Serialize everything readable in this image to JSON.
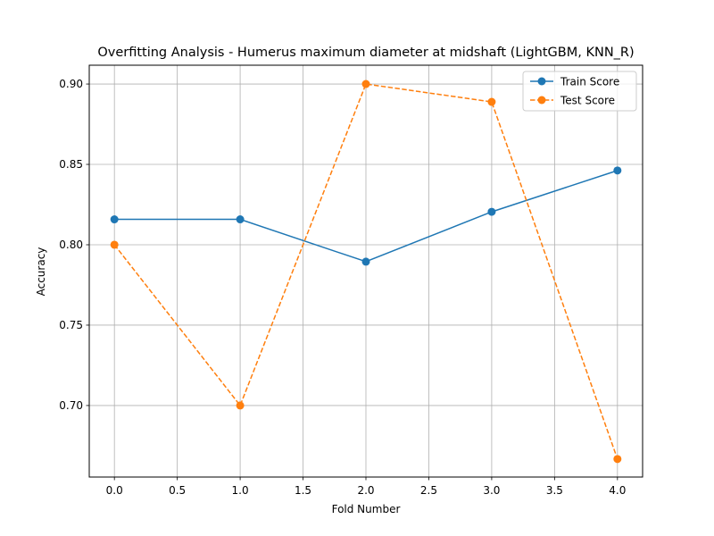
{
  "chart_data": {
    "type": "line",
    "title": "Overfitting Analysis - Humerus maximum diameter at midshaft (LightGBM, KNN_R)",
    "xlabel": "Fold Number",
    "ylabel": "Accuracy",
    "x": [
      0,
      1,
      2,
      3,
      4
    ],
    "xlim": [
      -0.2,
      4.2
    ],
    "ylim": [
      0.6555,
      0.9117
    ],
    "xticks": [
      0.0,
      0.5,
      1.0,
      1.5,
      2.0,
      2.5,
      3.0,
      3.5,
      4.0
    ],
    "yticks": [
      0.7,
      0.75,
      0.8,
      0.85,
      0.9
    ],
    "xtick_labels": [
      "0.0",
      "0.5",
      "1.0",
      "1.5",
      "2.0",
      "2.5",
      "3.0",
      "3.5",
      "4.0"
    ],
    "ytick_labels": [
      "0.70",
      "0.75",
      "0.80",
      "0.85",
      "0.90"
    ],
    "grid": true,
    "legend_position": "top-right",
    "series": [
      {
        "name": "Train Score",
        "values": [
          0.8158,
          0.8158,
          0.7895,
          0.8205,
          0.8462
        ],
        "color": "#1f77b4",
        "dash": "solid",
        "marker": "circle"
      },
      {
        "name": "Test Score",
        "values": [
          0.8,
          0.7,
          0.9,
          0.8889,
          0.6667
        ],
        "color": "#ff7f0e",
        "dash": "dashed",
        "marker": "circle"
      }
    ]
  }
}
